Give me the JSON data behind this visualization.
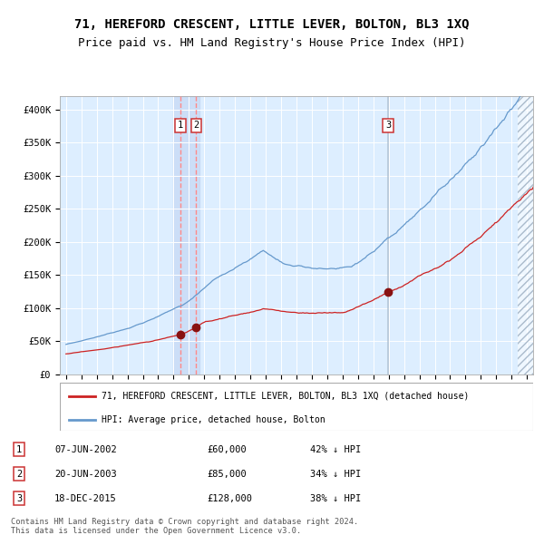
{
  "title": "71, HEREFORD CRESCENT, LITTLE LEVER, BOLTON, BL3 1XQ",
  "subtitle": "Price paid vs. HM Land Registry's House Price Index (HPI)",
  "title_fontsize": 10,
  "subtitle_fontsize": 9,
  "ylim": [
    0,
    420000
  ],
  "yticks": [
    0,
    50000,
    100000,
    150000,
    200000,
    250000,
    300000,
    350000,
    400000
  ],
  "ytick_labels": [
    "£0",
    "£50K",
    "£100K",
    "£150K",
    "£200K",
    "£250K",
    "£300K",
    "£350K",
    "£400K"
  ],
  "xlim_start": 1994.6,
  "xlim_end": 2025.4,
  "bg_color": "#ddeeff",
  "hpi_line_color": "#6699cc",
  "price_line_color": "#cc2222",
  "marker_color": "#881111",
  "transactions": [
    {
      "num": 1,
      "date_label": "07-JUN-2002",
      "date_x": 2002.44,
      "price": 60000,
      "price_str": "£60,000",
      "hpi_pct": "42%"
    },
    {
      "num": 2,
      "date_label": "20-JUN-2003",
      "date_x": 2003.47,
      "price": 85000,
      "price_str": "£85,000",
      "hpi_pct": "34%"
    },
    {
      "num": 3,
      "date_label": "18-DEC-2015",
      "date_x": 2015.96,
      "price": 128000,
      "price_str": "£128,000",
      "hpi_pct": "38%"
    }
  ],
  "legend_price_label": "71, HEREFORD CRESCENT, LITTLE LEVER, BOLTON, BL3 1XQ (detached house)",
  "legend_hpi_label": "HPI: Average price, detached house, Bolton",
  "footer1": "Contains HM Land Registry data © Crown copyright and database right 2024.",
  "footer2": "This data is licensed under the Open Government Licence v3.0.",
  "grid_color": "#ffffff"
}
